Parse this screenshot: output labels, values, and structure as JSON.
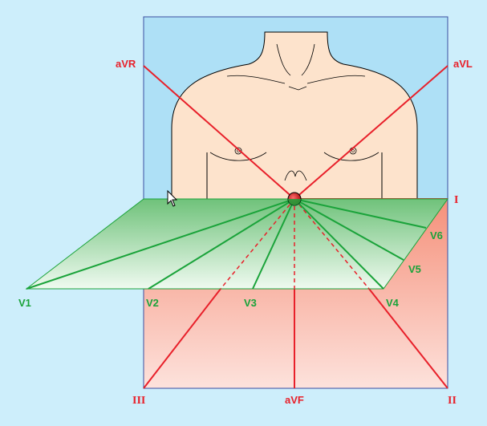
{
  "colors": {
    "background": "#cdeefb",
    "limb_lead": "#e8202a",
    "precordial_lead": "#1aa33a",
    "frontal_plane_top": "#aee0f6",
    "frontal_plane_bottom_top": "#f5907a",
    "frontal_plane_bottom_bottom": "#fde2dc",
    "horizontal_plane_top": "#6fc27a",
    "horizontal_plane_bottom": "#effaf0",
    "skin": "#fde3cc",
    "heart_center": "#e8202a"
  },
  "limb_leads": {
    "aVR": "aVR",
    "aVL": "aVL",
    "I": "I",
    "II": "II",
    "III": "III",
    "aVF": "aVF"
  },
  "precordial_leads": {
    "V1": "V1",
    "V2": "V2",
    "V3": "V3",
    "V4": "V4",
    "V5": "V5",
    "V6": "V6"
  },
  "icons": {
    "cursor": "mouse-pointer-icon"
  }
}
